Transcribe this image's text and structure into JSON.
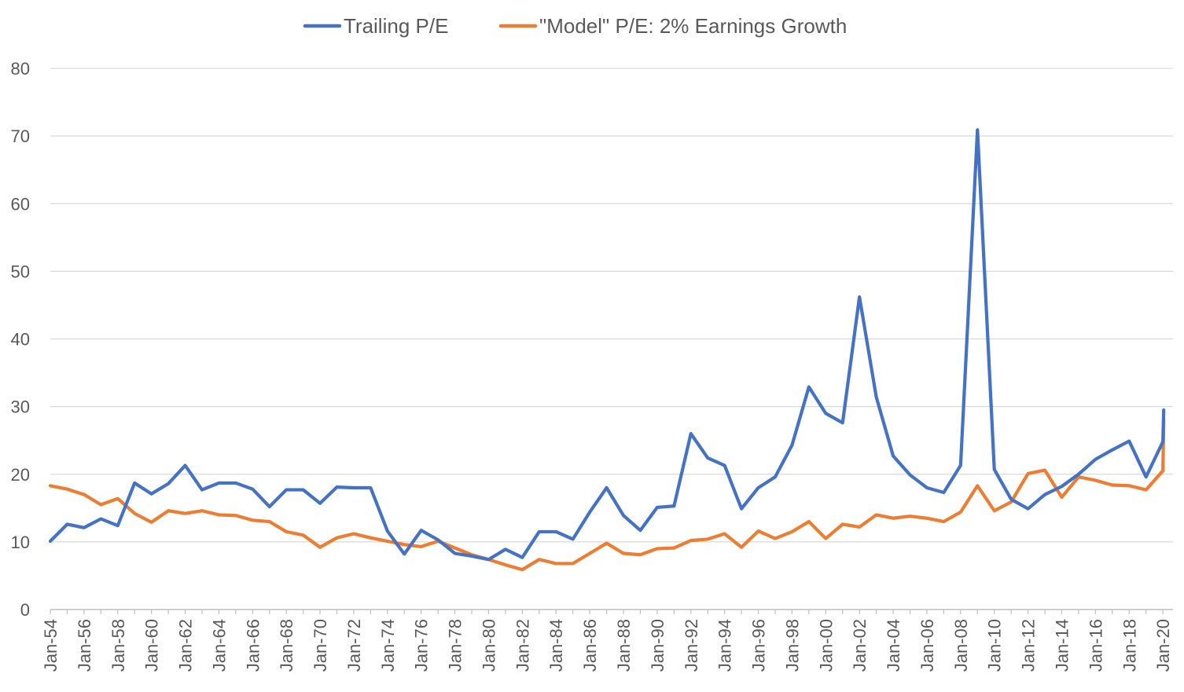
{
  "chart_data": {
    "type": "line",
    "title": "",
    "xlabel": "",
    "ylabel": "",
    "ylim": [
      0,
      80
    ],
    "yticks": [
      0,
      10,
      20,
      30,
      40,
      50,
      60,
      70,
      80
    ],
    "grid": "horizontal",
    "legend_position": "top",
    "x_ticks": [
      "Jan-54",
      "Jan-56",
      "Jan-58",
      "Jan-60",
      "Jan-62",
      "Jan-64",
      "Jan-66",
      "Jan-68",
      "Jan-70",
      "Jan-72",
      "Jan-74",
      "Jan-76",
      "Jan-78",
      "Jan-80",
      "Jan-82",
      "Jan-84",
      "Jan-86",
      "Jan-88",
      "Jan-90",
      "Jan-92",
      "Jan-94",
      "Jan-96",
      "Jan-98",
      "Jan-00",
      "Jan-02",
      "Jan-04",
      "Jan-06",
      "Jan-08",
      "Jan-10",
      "Jan-12",
      "Jan-14",
      "Jan-16",
      "Jan-18",
      "Jan-20"
    ],
    "x": [
      1954,
      1955,
      1956,
      1957,
      1958,
      1959,
      1960,
      1961,
      1962,
      1963,
      1964,
      1965,
      1966,
      1967,
      1968,
      1969,
      1970,
      1971,
      1972,
      1973,
      1974,
      1975,
      1976,
      1977,
      1978,
      1979,
      1980,
      1981,
      1982,
      1983,
      1984,
      1985,
      1986,
      1987,
      1988,
      1989,
      1990,
      1991,
      1992,
      1993,
      1994,
      1995,
      1996,
      1997,
      1998,
      1999,
      2000,
      2001,
      2002,
      2003,
      2004,
      2005,
      2006,
      2007,
      2008,
      2009,
      2010,
      2011,
      2012,
      2013,
      2014,
      2015,
      2016,
      2017,
      2018,
      2019,
      2020
    ],
    "x_tail": {
      "x": 2020.05,
      "values": [
        29.5,
        28.0
      ]
    },
    "series": [
      {
        "name": "Trailing P/E",
        "color": "#4472C4",
        "values": [
          10.1,
          12.6,
          12.1,
          13.4,
          12.4,
          18.7,
          17.1,
          18.6,
          21.3,
          17.7,
          18.7,
          18.7,
          17.8,
          15.2,
          17.7,
          17.7,
          15.7,
          18.1,
          18.0,
          18.0,
          11.6,
          8.2,
          11.7,
          10.3,
          8.3,
          7.9,
          7.4,
          8.9,
          7.7,
          11.5,
          11.5,
          10.4,
          14.4,
          18.0,
          13.9,
          11.7,
          15.1,
          15.3,
          26.0,
          22.4,
          21.3,
          14.9,
          18.0,
          19.6,
          24.3,
          32.9,
          29.0,
          27.6,
          46.2,
          31.4,
          22.7,
          19.9,
          18.0,
          17.3,
          21.3,
          70.9,
          20.7,
          16.3,
          14.9,
          17.0,
          18.2,
          20.0,
          22.2,
          23.6,
          24.9,
          19.6,
          24.8
        ]
      },
      {
        "name": "\"Model\" P/E: 2% Earnings Growth",
        "color": "#ED7D31",
        "values": [
          18.3,
          17.8,
          17.0,
          15.5,
          16.4,
          14.2,
          12.9,
          14.6,
          14.2,
          14.6,
          14.0,
          13.9,
          13.2,
          13.0,
          11.5,
          11.0,
          9.2,
          10.6,
          11.2,
          10.6,
          10.1,
          9.6,
          9.3,
          10.1,
          9.1,
          8.1,
          7.4,
          6.6,
          5.9,
          7.4,
          6.8,
          6.8,
          8.3,
          9.8,
          8.3,
          8.1,
          9.0,
          9.1,
          10.2,
          10.4,
          11.2,
          9.2,
          11.6,
          10.5,
          11.5,
          13.0,
          10.5,
          12.6,
          12.2,
          14.0,
          13.5,
          13.8,
          13.5,
          13.0,
          14.4,
          18.3,
          14.6,
          15.9,
          20.1,
          20.6,
          16.6,
          19.6,
          19.1,
          18.4,
          18.3,
          17.7,
          20.5
        ]
      }
    ]
  }
}
